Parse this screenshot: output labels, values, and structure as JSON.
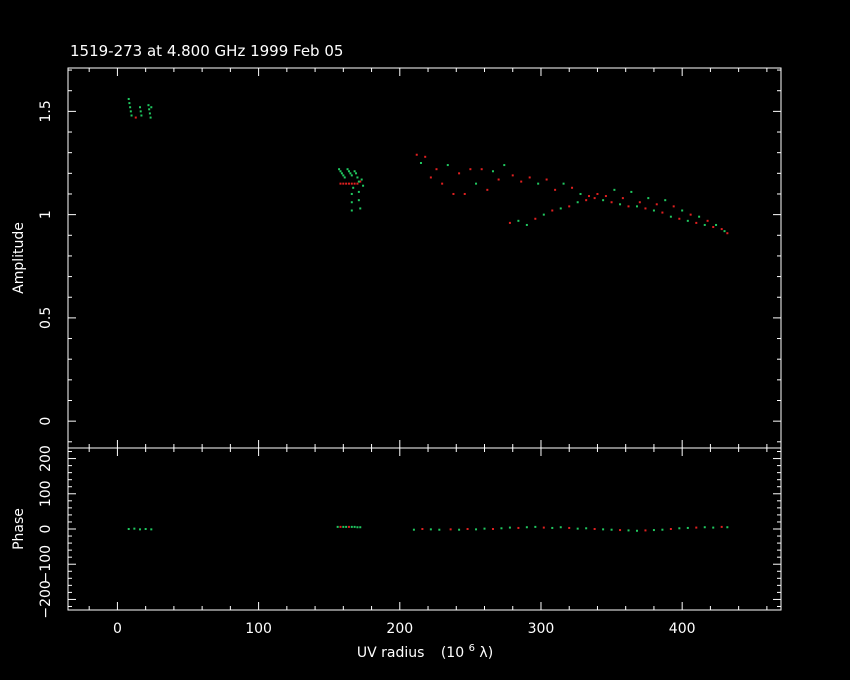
{
  "chart_data": {
    "type": "scatter",
    "title": "1519-273 at 4.800 GHz 1999 Feb 05",
    "xlabel": "UV radius",
    "xlabel_units": "(10",
    "xlabel_exp": "6",
    "xlabel_sym": " λ)",
    "xlim": [
      -35,
      470
    ],
    "xticks": [
      "0",
      "100",
      "200",
      "300",
      "400"
    ],
    "xtick_values": [
      0,
      100,
      200,
      300,
      400
    ],
    "panels": {
      "amplitude": {
        "ylabel": "Amplitude",
        "ylim": [
          -0.13,
          1.71
        ],
        "yticks": [
          "0",
          "0.5",
          "1",
          "1.5"
        ],
        "ytick_values": [
          0,
          0.5,
          1,
          1.5
        ]
      },
      "phase": {
        "ylabel": "Phase",
        "ylim": [
          -230,
          230
        ],
        "yticks": [
          "−200",
          "−100",
          "0",
          "100",
          "200"
        ],
        "ytick_values": [
          -200,
          -100,
          0,
          100,
          200
        ]
      }
    },
    "colors": {
      "green": "#20c860",
      "red": "#e02020",
      "frame": "#ffffff",
      "background": "#000000"
    },
    "amplitude_points": [
      {
        "x": 8,
        "y": 1.56,
        "c": "green"
      },
      {
        "x": 8.5,
        "y": 1.54,
        "c": "green"
      },
      {
        "x": 9,
        "y": 1.52,
        "c": "green"
      },
      {
        "x": 9.5,
        "y": 1.5,
        "c": "green"
      },
      {
        "x": 10,
        "y": 1.48,
        "c": "green"
      },
      {
        "x": 13,
        "y": 1.47,
        "c": "red"
      },
      {
        "x": 16,
        "y": 1.52,
        "c": "green"
      },
      {
        "x": 16.5,
        "y": 1.5,
        "c": "green"
      },
      {
        "x": 17,
        "y": 1.48,
        "c": "green"
      },
      {
        "x": 22,
        "y": 1.53,
        "c": "green"
      },
      {
        "x": 22.5,
        "y": 1.51,
        "c": "green"
      },
      {
        "x": 23,
        "y": 1.49,
        "c": "green"
      },
      {
        "x": 23.5,
        "y": 1.47,
        "c": "green"
      },
      {
        "x": 24,
        "y": 1.52,
        "c": "green"
      },
      {
        "x": 158,
        "y": 1.15,
        "c": "red"
      },
      {
        "x": 160,
        "y": 1.15,
        "c": "red"
      },
      {
        "x": 162,
        "y": 1.15,
        "c": "red"
      },
      {
        "x": 164,
        "y": 1.15,
        "c": "red"
      },
      {
        "x": 166,
        "y": 1.15,
        "c": "red"
      },
      {
        "x": 168,
        "y": 1.15,
        "c": "red"
      },
      {
        "x": 170,
        "y": 1.15,
        "c": "red"
      },
      {
        "x": 172,
        "y": 1.16,
        "c": "red"
      },
      {
        "x": 157,
        "y": 1.22,
        "c": "green"
      },
      {
        "x": 158,
        "y": 1.21,
        "c": "green"
      },
      {
        "x": 159,
        "y": 1.2,
        "c": "green"
      },
      {
        "x": 160,
        "y": 1.19,
        "c": "green"
      },
      {
        "x": 161,
        "y": 1.18,
        "c": "green"
      },
      {
        "x": 163,
        "y": 1.22,
        "c": "green"
      },
      {
        "x": 164,
        "y": 1.21,
        "c": "green"
      },
      {
        "x": 165,
        "y": 1.2,
        "c": "green"
      },
      {
        "x": 166,
        "y": 1.19,
        "c": "green"
      },
      {
        "x": 166,
        "y": 1.1,
        "c": "green"
      },
      {
        "x": 166,
        "y": 1.06,
        "c": "green"
      },
      {
        "x": 166,
        "y": 1.02,
        "c": "green"
      },
      {
        "x": 167,
        "y": 1.13,
        "c": "green"
      },
      {
        "x": 168,
        "y": 1.21,
        "c": "green"
      },
      {
        "x": 169,
        "y": 1.2,
        "c": "green"
      },
      {
        "x": 170,
        "y": 1.18,
        "c": "green"
      },
      {
        "x": 171,
        "y": 1.16,
        "c": "green"
      },
      {
        "x": 171,
        "y": 1.11,
        "c": "green"
      },
      {
        "x": 171,
        "y": 1.07,
        "c": "green"
      },
      {
        "x": 172,
        "y": 1.03,
        "c": "green"
      },
      {
        "x": 173,
        "y": 1.17,
        "c": "green"
      },
      {
        "x": 174,
        "y": 1.14,
        "c": "green"
      },
      {
        "x": 212,
        "y": 1.29,
        "c": "red"
      },
      {
        "x": 215,
        "y": 1.25,
        "c": "green"
      },
      {
        "x": 218,
        "y": 1.28,
        "c": "red"
      },
      {
        "x": 222,
        "y": 1.18,
        "c": "red"
      },
      {
        "x": 226,
        "y": 1.22,
        "c": "red"
      },
      {
        "x": 230,
        "y": 1.15,
        "c": "red"
      },
      {
        "x": 234,
        "y": 1.24,
        "c": "green"
      },
      {
        "x": 238,
        "y": 1.1,
        "c": "red"
      },
      {
        "x": 242,
        "y": 1.2,
        "c": "red"
      },
      {
        "x": 246,
        "y": 1.1,
        "c": "red"
      },
      {
        "x": 250,
        "y": 1.22,
        "c": "red"
      },
      {
        "x": 254,
        "y": 1.15,
        "c": "green"
      },
      {
        "x": 258,
        "y": 1.22,
        "c": "red"
      },
      {
        "x": 262,
        "y": 1.12,
        "c": "red"
      },
      {
        "x": 266,
        "y": 1.21,
        "c": "green"
      },
      {
        "x": 270,
        "y": 1.17,
        "c": "red"
      },
      {
        "x": 274,
        "y": 1.24,
        "c": "green"
      },
      {
        "x": 278,
        "y": 0.96,
        "c": "red"
      },
      {
        "x": 280,
        "y": 1.19,
        "c": "red"
      },
      {
        "x": 284,
        "y": 0.97,
        "c": "green"
      },
      {
        "x": 286,
        "y": 1.16,
        "c": "red"
      },
      {
        "x": 290,
        "y": 0.95,
        "c": "green"
      },
      {
        "x": 292,
        "y": 1.18,
        "c": "red"
      },
      {
        "x": 296,
        "y": 0.98,
        "c": "red"
      },
      {
        "x": 298,
        "y": 1.15,
        "c": "green"
      },
      {
        "x": 302,
        "y": 1.0,
        "c": "green"
      },
      {
        "x": 304,
        "y": 1.17,
        "c": "red"
      },
      {
        "x": 308,
        "y": 1.02,
        "c": "red"
      },
      {
        "x": 310,
        "y": 1.12,
        "c": "red"
      },
      {
        "x": 314,
        "y": 1.03,
        "c": "green"
      },
      {
        "x": 316,
        "y": 1.15,
        "c": "green"
      },
      {
        "x": 320,
        "y": 1.04,
        "c": "red"
      },
      {
        "x": 322,
        "y": 1.13,
        "c": "red"
      },
      {
        "x": 326,
        "y": 1.06,
        "c": "green"
      },
      {
        "x": 328,
        "y": 1.1,
        "c": "green"
      },
      {
        "x": 332,
        "y": 1.07,
        "c": "red"
      },
      {
        "x": 334,
        "y": 1.09,
        "c": "red"
      },
      {
        "x": 338,
        "y": 1.08,
        "c": "red"
      },
      {
        "x": 340,
        "y": 1.1,
        "c": "red"
      },
      {
        "x": 344,
        "y": 1.07,
        "c": "green"
      },
      {
        "x": 346,
        "y": 1.09,
        "c": "red"
      },
      {
        "x": 350,
        "y": 1.06,
        "c": "red"
      },
      {
        "x": 352,
        "y": 1.12,
        "c": "green"
      },
      {
        "x": 356,
        "y": 1.05,
        "c": "green"
      },
      {
        "x": 358,
        "y": 1.08,
        "c": "red"
      },
      {
        "x": 362,
        "y": 1.04,
        "c": "red"
      },
      {
        "x": 364,
        "y": 1.11,
        "c": "green"
      },
      {
        "x": 368,
        "y": 1.04,
        "c": "green"
      },
      {
        "x": 370,
        "y": 1.06,
        "c": "red"
      },
      {
        "x": 374,
        "y": 1.03,
        "c": "red"
      },
      {
        "x": 376,
        "y": 1.08,
        "c": "green"
      },
      {
        "x": 380,
        "y": 1.02,
        "c": "green"
      },
      {
        "x": 382,
        "y": 1.05,
        "c": "red"
      },
      {
        "x": 386,
        "y": 1.01,
        "c": "red"
      },
      {
        "x": 388,
        "y": 1.07,
        "c": "green"
      },
      {
        "x": 392,
        "y": 0.99,
        "c": "green"
      },
      {
        "x": 394,
        "y": 1.04,
        "c": "red"
      },
      {
        "x": 398,
        "y": 0.98,
        "c": "red"
      },
      {
        "x": 400,
        "y": 1.02,
        "c": "green"
      },
      {
        "x": 404,
        "y": 0.97,
        "c": "green"
      },
      {
        "x": 406,
        "y": 1.0,
        "c": "red"
      },
      {
        "x": 410,
        "y": 0.96,
        "c": "red"
      },
      {
        "x": 412,
        "y": 0.99,
        "c": "green"
      },
      {
        "x": 416,
        "y": 0.95,
        "c": "green"
      },
      {
        "x": 418,
        "y": 0.97,
        "c": "red"
      },
      {
        "x": 422,
        "y": 0.94,
        "c": "red"
      },
      {
        "x": 424,
        "y": 0.95,
        "c": "green"
      },
      {
        "x": 428,
        "y": 0.93,
        "c": "red"
      },
      {
        "x": 430,
        "y": 0.92,
        "c": "green"
      },
      {
        "x": 432,
        "y": 0.91,
        "c": "red"
      }
    ],
    "phase_points": [
      {
        "x": 8,
        "y": 0,
        "c": "green"
      },
      {
        "x": 12,
        "y": 1,
        "c": "green"
      },
      {
        "x": 16,
        "y": -1,
        "c": "green"
      },
      {
        "x": 20,
        "y": 0,
        "c": "green"
      },
      {
        "x": 24,
        "y": -1,
        "c": "green"
      },
      {
        "x": 156,
        "y": 6,
        "c": "green"
      },
      {
        "x": 158,
        "y": 6,
        "c": "red"
      },
      {
        "x": 160,
        "y": 6,
        "c": "green"
      },
      {
        "x": 162,
        "y": 6,
        "c": "green"
      },
      {
        "x": 164,
        "y": 6,
        "c": "red"
      },
      {
        "x": 166,
        "y": 6,
        "c": "green"
      },
      {
        "x": 168,
        "y": 6,
        "c": "green"
      },
      {
        "x": 170,
        "y": 5,
        "c": "green"
      },
      {
        "x": 172,
        "y": 5,
        "c": "green"
      },
      {
        "x": 210,
        "y": -2,
        "c": "green"
      },
      {
        "x": 216,
        "y": 0,
        "c": "red"
      },
      {
        "x": 222,
        "y": -1,
        "c": "green"
      },
      {
        "x": 228,
        "y": -2,
        "c": "green"
      },
      {
        "x": 236,
        "y": -1,
        "c": "red"
      },
      {
        "x": 242,
        "y": -2,
        "c": "green"
      },
      {
        "x": 248,
        "y": 0,
        "c": "red"
      },
      {
        "x": 254,
        "y": -1,
        "c": "green"
      },
      {
        "x": 260,
        "y": 1,
        "c": "green"
      },
      {
        "x": 266,
        "y": 0,
        "c": "red"
      },
      {
        "x": 272,
        "y": 2,
        "c": "green"
      },
      {
        "x": 278,
        "y": 4,
        "c": "green"
      },
      {
        "x": 284,
        "y": 3,
        "c": "red"
      },
      {
        "x": 290,
        "y": 5,
        "c": "green"
      },
      {
        "x": 296,
        "y": 6,
        "c": "green"
      },
      {
        "x": 302,
        "y": 4,
        "c": "red"
      },
      {
        "x": 308,
        "y": 3,
        "c": "green"
      },
      {
        "x": 314,
        "y": 5,
        "c": "green"
      },
      {
        "x": 320,
        "y": 3,
        "c": "red"
      },
      {
        "x": 326,
        "y": 1,
        "c": "green"
      },
      {
        "x": 332,
        "y": 2,
        "c": "green"
      },
      {
        "x": 338,
        "y": 0,
        "c": "red"
      },
      {
        "x": 344,
        "y": -1,
        "c": "green"
      },
      {
        "x": 350,
        "y": -2,
        "c": "green"
      },
      {
        "x": 356,
        "y": -3,
        "c": "red"
      },
      {
        "x": 362,
        "y": -4,
        "c": "green"
      },
      {
        "x": 368,
        "y": -5,
        "c": "green"
      },
      {
        "x": 374,
        "y": -4,
        "c": "red"
      },
      {
        "x": 380,
        "y": -3,
        "c": "green"
      },
      {
        "x": 386,
        "y": -2,
        "c": "green"
      },
      {
        "x": 392,
        "y": 0,
        "c": "red"
      },
      {
        "x": 398,
        "y": 2,
        "c": "green"
      },
      {
        "x": 404,
        "y": 3,
        "c": "green"
      },
      {
        "x": 410,
        "y": 4,
        "c": "red"
      },
      {
        "x": 416,
        "y": 5,
        "c": "green"
      },
      {
        "x": 422,
        "y": 4,
        "c": "green"
      },
      {
        "x": 428,
        "y": 6,
        "c": "red"
      },
      {
        "x": 432,
        "y": 5,
        "c": "green"
      }
    ]
  }
}
